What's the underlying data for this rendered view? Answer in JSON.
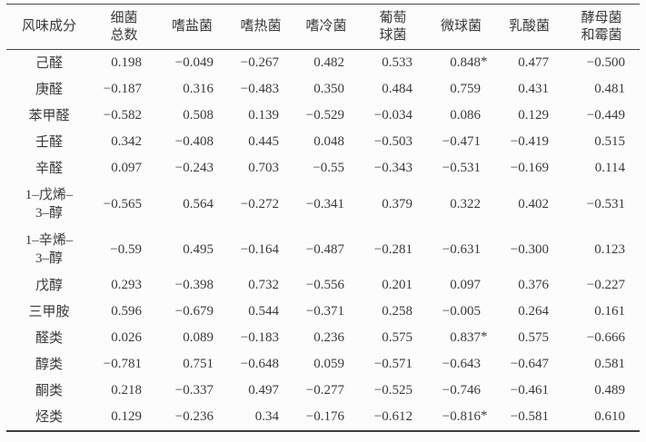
{
  "colors": {
    "text": "#3a3a3a",
    "rule": "#474747",
    "background": "#fcfcfc"
  },
  "table": {
    "columns": [
      {
        "key": "flavor-component",
        "label": "风味成分"
      },
      {
        "key": "total-bacteria",
        "label": "细菌\n总数"
      },
      {
        "key": "halophilic-bacteria",
        "label": "嗜盐菌"
      },
      {
        "key": "thermophilic-bacteria",
        "label": "嗜热菌"
      },
      {
        "key": "psychrophilic-bacteria",
        "label": "嗜冷菌"
      },
      {
        "key": "staphylococcus",
        "label": "葡萄\n球菌"
      },
      {
        "key": "micrococcus",
        "label": "微球菌"
      },
      {
        "key": "lactic-acid-bacteria",
        "label": "乳酸菌"
      },
      {
        "key": "yeast-and-mold",
        "label": "酵母菌\n和霉菌"
      }
    ],
    "rows": [
      {
        "label": "己醛",
        "values": [
          "0.198",
          "−0.049",
          "−0.267",
          "0.482",
          "0.533",
          "0.848*",
          "0.477",
          "−0.500"
        ]
      },
      {
        "label": "庚醛",
        "values": [
          "−0.187",
          "0.316",
          "−0.483",
          "0.350",
          "0.484",
          "0.759",
          "0.431",
          "0.481"
        ]
      },
      {
        "label": "苯甲醛",
        "values": [
          "−0.582",
          "0.508",
          "0.139",
          "−0.529",
          "−0.034",
          "0.086",
          "0.129",
          "−0.449"
        ]
      },
      {
        "label": "壬醛",
        "values": [
          "0.342",
          "−0.408",
          "0.445",
          "0.048",
          "−0.503",
          "−0.471",
          "−0.419",
          "0.515"
        ]
      },
      {
        "label": "辛醛",
        "values": [
          "0.097",
          "−0.243",
          "0.703",
          "−0.55",
          "−0.343",
          "−0.531",
          "−0.169",
          "0.114"
        ]
      },
      {
        "label": "1–戊烯–\n3–醇",
        "values": [
          "−0.565",
          "0.564",
          "−0.272",
          "−0.341",
          "0.379",
          "0.322",
          "0.402",
          "−0.531"
        ]
      },
      {
        "label": "1–辛烯–\n3–醇",
        "values": [
          "−0.59",
          "0.495",
          "−0.164",
          "−0.487",
          "−0.281",
          "−0.631",
          "−0.300",
          "0.123"
        ]
      },
      {
        "label": "戊醇",
        "values": [
          "0.293",
          "−0.398",
          "0.732",
          "−0.556",
          "0.201",
          "0.097",
          "0.376",
          "−0.227"
        ]
      },
      {
        "label": "三甲胺",
        "values": [
          "0.596",
          "−0.679",
          "0.544",
          "−0.371",
          "0.258",
          "−0.005",
          "0.264",
          "0.161"
        ]
      },
      {
        "label": "醛类",
        "values": [
          "0.026",
          "0.089",
          "−0.183",
          "0.236",
          "0.575",
          "0.837*",
          "0.575",
          "−0.666"
        ]
      },
      {
        "label": "醇类",
        "values": [
          "−0.781",
          "0.751",
          "−0.648",
          "0.059",
          "−0.571",
          "−0.643",
          "−0.647",
          "0.581"
        ]
      },
      {
        "label": "酮类",
        "values": [
          "0.218",
          "−0.337",
          "0.497",
          "−0.277",
          "−0.525",
          "−0.746",
          "−0.461",
          "0.489"
        ]
      },
      {
        "label": "烃类",
        "values": [
          "0.129",
          "−0.236",
          "0.34",
          "−0.176",
          "−0.612",
          "−0.816*",
          "−0.581",
          "0.610"
        ]
      }
    ]
  }
}
